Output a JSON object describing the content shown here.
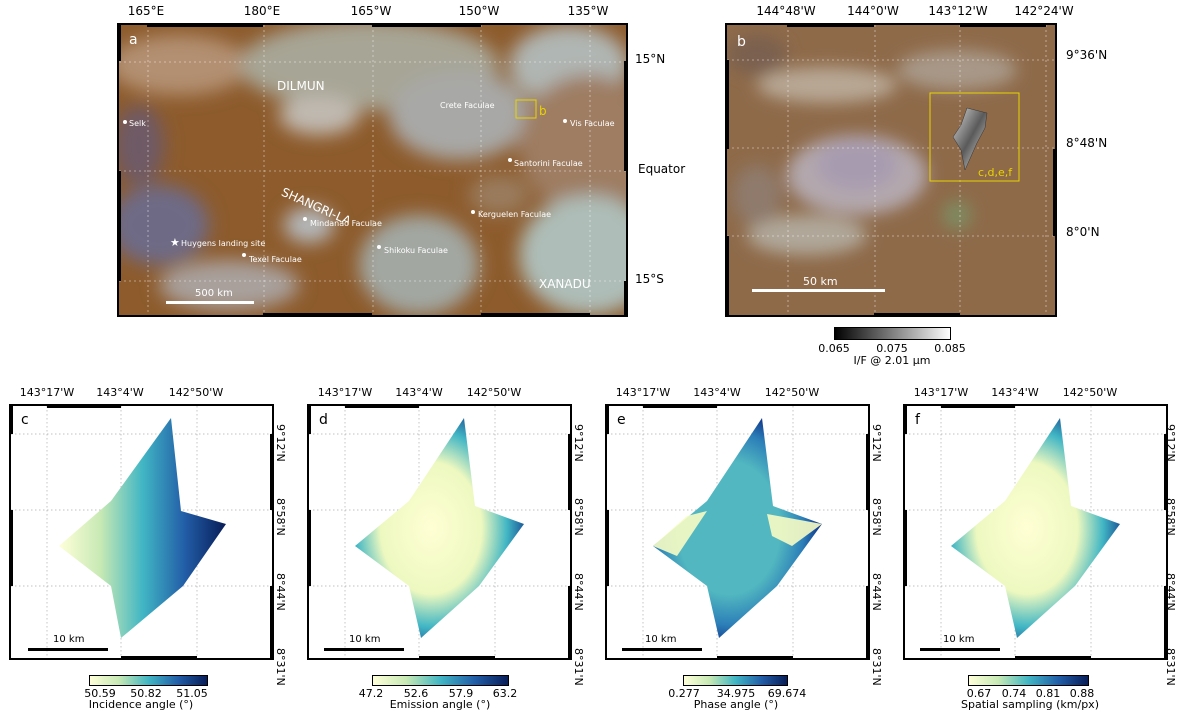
{
  "panel_a": {
    "letter": "a",
    "top_ticks": [
      "165°E",
      "180°E",
      "165°W",
      "150°W",
      "135°W"
    ],
    "right_ticks": [
      "15°N",
      "Equator",
      "15°S"
    ],
    "regions": [
      "DILMUN",
      "SHANGRI-LA",
      "XANADU"
    ],
    "features": [
      "Selk",
      "Crete Faculae",
      "Vis Faculae",
      "Santorini Faculae",
      "Kerguelen Faculae",
      "Mindanao Faculae",
      "Huygens landing site",
      "Texel Faculae",
      "Shikoku Faculae"
    ],
    "inset_label": "b",
    "scale": "500 km"
  },
  "panel_b": {
    "letter": "b",
    "top_ticks": [
      "144°48'W",
      "144°0'W",
      "143°12'W",
      "142°24'W"
    ],
    "right_ticks": [
      "9°36'N",
      "8°48'N",
      "8°0'N"
    ],
    "inset_label": "c,d,e,f",
    "scale": "50 km",
    "colorbar": {
      "ticks": [
        "0.065",
        "0.075",
        "0.085"
      ],
      "title": "I/F @ 2.01 μm"
    }
  },
  "small_panels_common": {
    "top_ticks": [
      "143°17'W",
      "143°4'W",
      "142°50'W"
    ],
    "right_ticks": [
      "9°12'N",
      "8°58'N",
      "8°44'N",
      "8°31'N"
    ],
    "scale": "10 km"
  },
  "panel_c": {
    "letter": "c",
    "cb_ticks": [
      "50.59",
      "50.82",
      "51.05"
    ],
    "cb_title": "Incidence angle (°)"
  },
  "panel_d": {
    "letter": "d",
    "cb_ticks": [
      "47.2",
      "52.6",
      "57.9",
      "63.2"
    ],
    "cb_title": "Emission angle (°)"
  },
  "panel_e": {
    "letter": "e",
    "cb_ticks": [
      "0.277",
      "34.975",
      "69.674"
    ],
    "cb_title": "Phase angle (°)"
  },
  "panel_f": {
    "letter": "f",
    "cb_ticks": [
      "0.67",
      "0.74",
      "0.81",
      "0.88"
    ],
    "cb_title": "Spatial sampling (km/px)"
  },
  "colors": {
    "ylgnbu_start": "#ffffd9",
    "ylgnbu_mid": "#41b6c4",
    "ylgnbu_end": "#081d58",
    "titan_brown": "#8a5a2e",
    "inset_box": "#e8d400"
  }
}
